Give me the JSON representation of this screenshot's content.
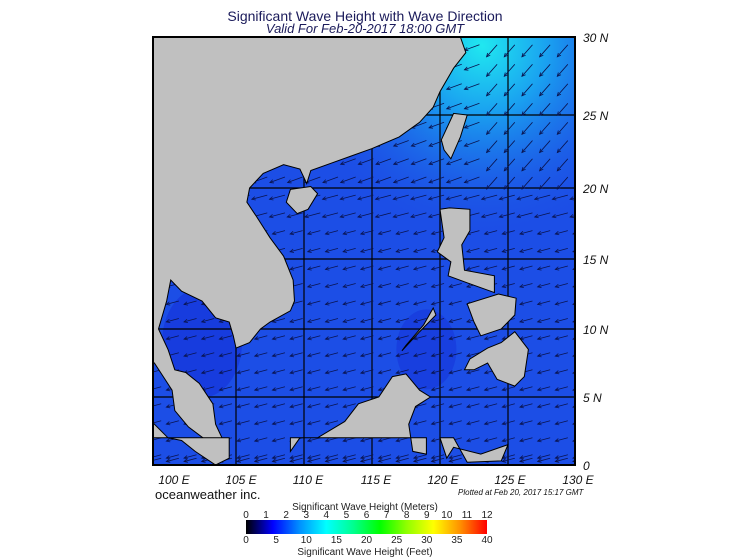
{
  "title": "Significant Wave Height with Wave Direction",
  "subtitle": "Valid For Feb-20-2017 18:00 GMT",
  "map": {
    "extent": {
      "lon": [
        100,
        130
      ],
      "lat": [
        0,
        30
      ]
    },
    "lat_labels": [
      "30 N",
      "25 N",
      "20 N",
      "15 N",
      "10 N",
      "5 N",
      "0"
    ],
    "lon_labels": [
      "100 E",
      "105 E",
      "110 E",
      "115 E",
      "120 E",
      "125 E",
      "130 E"
    ],
    "ocean_color": "#1c4ee6",
    "land_color": "#c0c0c0",
    "high_wave_color": "#20e8f0",
    "wave_direction": "from northeast"
  },
  "credit": "oceanweather inc.",
  "plotted": "Plotted at Feb 20, 2017 15:17 GMT",
  "colorbar": {
    "meters_title": "Significant Wave Height (Meters)",
    "feet_title": "Significant Wave Height (Feet)",
    "meters_ticks": [
      "0",
      "1",
      "2",
      "3",
      "4",
      "5",
      "6",
      "7",
      "8",
      "9",
      "10",
      "11",
      "12"
    ],
    "feet_ticks": [
      "0",
      "5",
      "10",
      "15",
      "20",
      "25",
      "30",
      "35",
      "40"
    ],
    "colors": [
      "#000000",
      "#0000ff",
      "#0090ff",
      "#00ffff",
      "#00ff90",
      "#00ff00",
      "#90ff00",
      "#ffff00",
      "#ff9000",
      "#ff0000"
    ]
  }
}
